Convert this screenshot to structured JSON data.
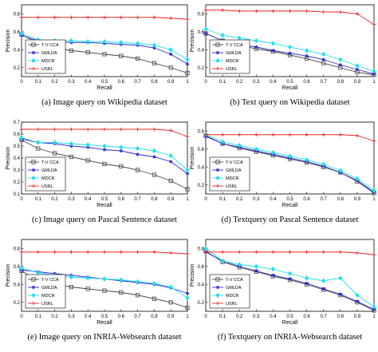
{
  "colors": {
    "T-V CCA": "#444444",
    "GMLDA": "#2a2acc",
    "MDCR": "#22ddee",
    "USRL": "#ee2222"
  },
  "chart_data": [
    {
      "type": "line",
      "caption": "(a) Image query on Wikipedia dataset",
      "xlabel": "Recall",
      "ylabel": "Precision",
      "xlim": [
        0,
        1
      ],
      "ylim": [
        0.1,
        0.9
      ],
      "xticks": [
        "0",
        "0.1",
        "0.2",
        "0.3",
        "0.4",
        "0.5",
        "0.6",
        "0.7",
        "0.8",
        "0.9",
        "1"
      ],
      "yticks": [
        "0.2",
        "0.4",
        "0.6",
        "0.8"
      ],
      "legend": "bottom-left",
      "x": [
        0,
        0.1,
        0.2,
        0.3,
        0.4,
        0.5,
        0.6,
        0.7,
        0.8,
        0.9,
        1.0
      ],
      "series": [
        {
          "name": "T-V CCA",
          "marker": "square",
          "values": [
            0.57,
            0.47,
            0.42,
            0.39,
            0.37,
            0.35,
            0.33,
            0.3,
            0.25,
            0.2,
            0.14
          ]
        },
        {
          "name": "GMLDA",
          "marker": "star",
          "values": [
            0.56,
            0.5,
            0.49,
            0.48,
            0.48,
            0.47,
            0.46,
            0.45,
            0.42,
            0.35,
            0.24
          ]
        },
        {
          "name": "MDCR",
          "marker": "diamond",
          "values": [
            0.58,
            0.51,
            0.5,
            0.5,
            0.49,
            0.49,
            0.48,
            0.47,
            0.45,
            0.4,
            0.29
          ]
        },
        {
          "name": "USRL",
          "marker": "plus",
          "values": [
            0.76,
            0.76,
            0.76,
            0.76,
            0.76,
            0.76,
            0.76,
            0.76,
            0.76,
            0.75,
            0.74
          ]
        }
      ]
    },
    {
      "type": "line",
      "caption": "(b) Text query on Wikipedia dataset",
      "xlabel": "Recall",
      "ylabel": "Precision",
      "xlim": [
        0,
        1
      ],
      "ylim": [
        0.1,
        0.9
      ],
      "xticks": [
        "0",
        "0.1",
        "0.2",
        "0.3",
        "0.4",
        "0.5",
        "0.6",
        "0.7",
        "0.8",
        "0.9",
        "1"
      ],
      "yticks": [
        "0.2",
        "0.4",
        "0.6",
        "0.8"
      ],
      "legend": "bottom-left",
      "x": [
        0,
        0.1,
        0.2,
        0.3,
        0.4,
        0.5,
        0.6,
        0.7,
        0.8,
        0.9,
        1.0
      ],
      "series": [
        {
          "name": "T-V CCA",
          "marker": "square",
          "values": [
            0.58,
            0.5,
            0.45,
            0.41,
            0.38,
            0.34,
            0.3,
            0.25,
            0.2,
            0.15,
            0.12
          ]
        },
        {
          "name": "GMLDA",
          "marker": "star",
          "values": [
            0.58,
            0.5,
            0.46,
            0.43,
            0.39,
            0.36,
            0.33,
            0.29,
            0.23,
            0.18,
            0.13
          ]
        },
        {
          "name": "MDCR",
          "marker": "diamond",
          "values": [
            0.63,
            0.56,
            0.53,
            0.5,
            0.47,
            0.43,
            0.39,
            0.35,
            0.29,
            0.22,
            0.16
          ]
        },
        {
          "name": "USRL",
          "marker": "plus",
          "values": [
            0.84,
            0.84,
            0.83,
            0.83,
            0.83,
            0.83,
            0.83,
            0.82,
            0.82,
            0.8,
            0.68
          ]
        }
      ]
    },
    {
      "type": "line",
      "caption": "(c) Image query on Pascal Sentence dataset",
      "xlabel": "Recall",
      "ylabel": "Precision",
      "xlim": [
        0,
        1
      ],
      "ylim": [
        0.1,
        0.7
      ],
      "xticks": [
        "0",
        "0.1",
        "0.2",
        "0.3",
        "0.4",
        "0.5",
        "0.6",
        "0.7",
        "0.8",
        "0.9",
        "1"
      ],
      "yticks": [
        "0.1",
        "0.2",
        "0.3",
        "0.4",
        "0.5",
        "0.6",
        "0.7"
      ],
      "legend": "bottom-left",
      "x": [
        0,
        0.1,
        0.2,
        0.3,
        0.4,
        0.5,
        0.6,
        0.7,
        0.8,
        0.9,
        1.0
      ],
      "series": [
        {
          "name": "T-V CCA",
          "marker": "square",
          "values": [
            0.55,
            0.48,
            0.44,
            0.41,
            0.38,
            0.35,
            0.33,
            0.3,
            0.26,
            0.21,
            0.14
          ]
        },
        {
          "name": "GMLDA",
          "marker": "star",
          "values": [
            0.56,
            0.53,
            0.52,
            0.5,
            0.49,
            0.47,
            0.46,
            0.43,
            0.41,
            0.37,
            0.27
          ]
        },
        {
          "name": "MDCR",
          "marker": "diamond",
          "values": [
            0.57,
            0.53,
            0.53,
            0.52,
            0.51,
            0.5,
            0.49,
            0.48,
            0.46,
            0.42,
            0.3
          ]
        },
        {
          "name": "USRL",
          "marker": "plus",
          "values": [
            0.64,
            0.64,
            0.64,
            0.64,
            0.64,
            0.64,
            0.64,
            0.64,
            0.64,
            0.63,
            0.58
          ]
        }
      ]
    },
    {
      "type": "line",
      "caption": "(d) Textquery on Pascal Sentence dataset",
      "xlabel": "Recall",
      "ylabel": "Precision",
      "xlim": [
        0,
        1
      ],
      "ylim": [
        0.1,
        0.9
      ],
      "xticks": [
        "0",
        "0.1",
        "0.2",
        "0.3",
        "0.4",
        "0.5",
        "0.6",
        "0.7",
        "0.8",
        "0.9",
        "1"
      ],
      "yticks": [
        "0.2",
        "0.4",
        "0.6",
        "0.8"
      ],
      "legend": "bottom-left",
      "x": [
        0,
        0.1,
        0.2,
        0.3,
        0.4,
        0.5,
        0.6,
        0.7,
        0.8,
        0.9,
        1.0
      ],
      "series": [
        {
          "name": "T-V CCA",
          "marker": "square",
          "values": [
            0.75,
            0.66,
            0.61,
            0.57,
            0.53,
            0.49,
            0.45,
            0.4,
            0.34,
            0.24,
            0.11
          ]
        },
        {
          "name": "GMLDA",
          "marker": "star",
          "values": [
            0.74,
            0.66,
            0.62,
            0.58,
            0.54,
            0.5,
            0.46,
            0.41,
            0.34,
            0.25,
            0.12
          ]
        },
        {
          "name": "MDCR",
          "marker": "diamond",
          "values": [
            0.76,
            0.68,
            0.64,
            0.6,
            0.56,
            0.52,
            0.48,
            0.43,
            0.36,
            0.27,
            0.14
          ]
        },
        {
          "name": "USRL",
          "marker": "plus",
          "values": [
            0.76,
            0.76,
            0.76,
            0.76,
            0.76,
            0.76,
            0.76,
            0.76,
            0.76,
            0.75,
            0.69
          ]
        }
      ]
    },
    {
      "type": "line",
      "caption": "(e) Image query on INRIA-Websearch dataset",
      "xlabel": "Recall",
      "ylabel": "Precision",
      "xlim": [
        0,
        1
      ],
      "ylim": [
        0.1,
        0.9
      ],
      "xticks": [
        "0",
        "0.1",
        "0.2",
        "0.3",
        "0.4",
        "0.5",
        "0.6",
        "0.7",
        "0.8",
        "0.9",
        "1"
      ],
      "yticks": [
        "0.2",
        "0.4",
        "0.6",
        "0.8"
      ],
      "legend": "bottom-left",
      "x": [
        0,
        0.1,
        0.2,
        0.3,
        0.4,
        0.5,
        0.6,
        0.7,
        0.8,
        0.9,
        1.0
      ],
      "series": [
        {
          "name": "T-V CCA",
          "marker": "square",
          "values": [
            0.55,
            0.44,
            0.4,
            0.37,
            0.35,
            0.33,
            0.31,
            0.28,
            0.24,
            0.2,
            0.14
          ]
        },
        {
          "name": "GMLDA",
          "marker": "star",
          "values": [
            0.56,
            0.54,
            0.52,
            0.5,
            0.48,
            0.46,
            0.44,
            0.42,
            0.4,
            0.36,
            0.3
          ]
        },
        {
          "name": "MDCR",
          "marker": "diamond",
          "values": [
            0.58,
            0.53,
            0.5,
            0.48,
            0.47,
            0.46,
            0.45,
            0.43,
            0.41,
            0.37,
            0.25
          ]
        },
        {
          "name": "USRL",
          "marker": "plus",
          "values": [
            0.76,
            0.76,
            0.76,
            0.76,
            0.76,
            0.76,
            0.76,
            0.76,
            0.76,
            0.75,
            0.74
          ]
        }
      ]
    },
    {
      "type": "line",
      "caption": "(f) Textquery on INRIA-Websearch dataset",
      "xlabel": "Recall",
      "ylabel": "Precision",
      "xlim": [
        0,
        1
      ],
      "ylim": [
        0.1,
        0.9
      ],
      "xticks": [
        "0",
        "0.1",
        "0.2",
        "0.3",
        "0.4",
        "0.5",
        "0.6",
        "0.7",
        "0.8",
        "0.9",
        "1"
      ],
      "yticks": [
        "0.2",
        "0.4",
        "0.6",
        "0.8"
      ],
      "legend": "bottom-left",
      "x": [
        0,
        0.1,
        0.2,
        0.3,
        0.4,
        0.5,
        0.6,
        0.7,
        0.8,
        0.9,
        1.0
      ],
      "series": [
        {
          "name": "T-V CCA",
          "marker": "square",
          "values": [
            0.77,
            0.65,
            0.59,
            0.54,
            0.49,
            0.45,
            0.4,
            0.34,
            0.28,
            0.2,
            0.11
          ]
        },
        {
          "name": "GMLDA",
          "marker": "star",
          "values": [
            0.76,
            0.66,
            0.6,
            0.55,
            0.5,
            0.46,
            0.41,
            0.35,
            0.29,
            0.21,
            0.12
          ]
        },
        {
          "name": "MDCR",
          "marker": "diamond",
          "values": [
            0.8,
            0.66,
            0.62,
            0.6,
            0.57,
            0.52,
            0.47,
            0.44,
            0.47,
            0.28,
            0.15
          ]
        },
        {
          "name": "USRL",
          "marker": "plus",
          "values": [
            0.76,
            0.76,
            0.76,
            0.76,
            0.76,
            0.76,
            0.76,
            0.76,
            0.76,
            0.75,
            0.73
          ]
        }
      ]
    }
  ]
}
